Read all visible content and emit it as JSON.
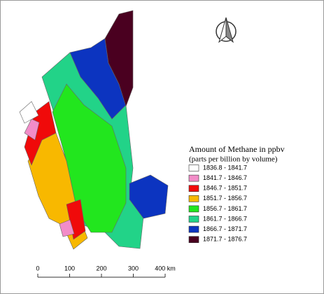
{
  "legend": {
    "title": "Amount of Methane in ppbv",
    "subtitle": "(parts per billion by volume)",
    "items": [
      {
        "label": "1836.8 - 1841.7",
        "color": "#ffffff"
      },
      {
        "label": "1841.7 - 1846.7",
        "color": "#f28cc8"
      },
      {
        "label": "1846.7 - 1851.7",
        "color": "#f00a0a"
      },
      {
        "label": "1851.7 - 1856.7",
        "color": "#f8b800"
      },
      {
        "label": "1856.7 - 1861.7",
        "color": "#22e61e"
      },
      {
        "label": "1861.7 - 1866.7",
        "color": "#22d388"
      },
      {
        "label": "1866.7 - 1871.7",
        "color": "#0c34c0"
      },
      {
        "label": "1871.7 - 1876.7",
        "color": "#4a0020"
      }
    ]
  },
  "scale_bar": {
    "ticks": [
      0,
      100,
      200,
      300,
      {
        "value": 400,
        "label": "400 km"
      }
    ]
  }
}
